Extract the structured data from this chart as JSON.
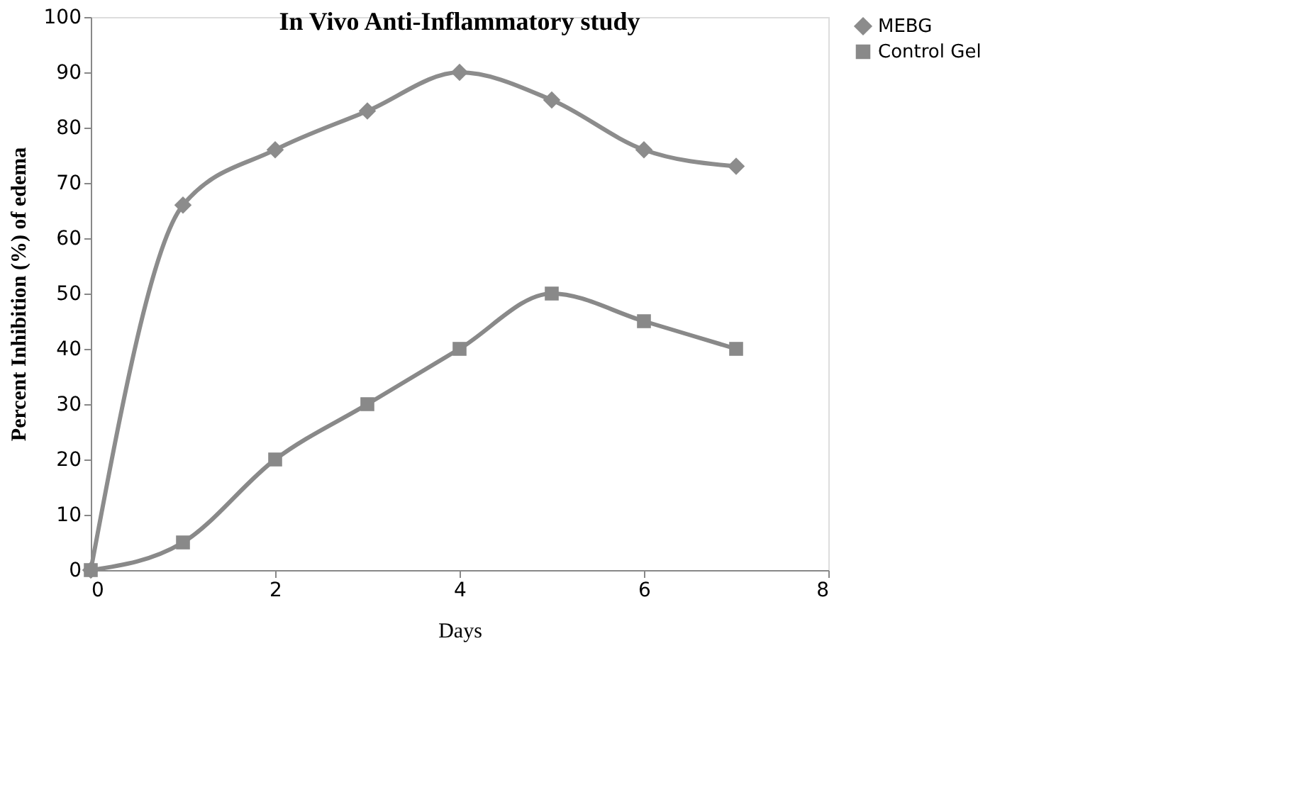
{
  "chart_data": {
    "type": "line",
    "title": "In Vivo Anti-Inflammatory study",
    "xlabel": "Days",
    "ylabel": "Percent Inhibition (%) of edema",
    "x": [
      0,
      1,
      2,
      3,
      4,
      5,
      6,
      7
    ],
    "series": [
      {
        "name": "MEBG",
        "color": "#8c8c8c",
        "marker": "diamond",
        "values": [
          0,
          66,
          76,
          83,
          90,
          85,
          76,
          73
        ]
      },
      {
        "name": "Control Gel",
        "color": "#898989",
        "marker": "square",
        "values": [
          0,
          5,
          20,
          30,
          40,
          50,
          45,
          40
        ]
      }
    ],
    "xlim": [
      0,
      8
    ],
    "xticks": [
      0,
      2,
      4,
      6,
      8
    ],
    "ylim": [
      0,
      100
    ],
    "yticks": [
      0,
      10,
      20,
      30,
      40,
      50,
      60,
      70,
      80,
      90,
      100
    ],
    "grid": false,
    "legend": "right",
    "line_style": "solid"
  }
}
